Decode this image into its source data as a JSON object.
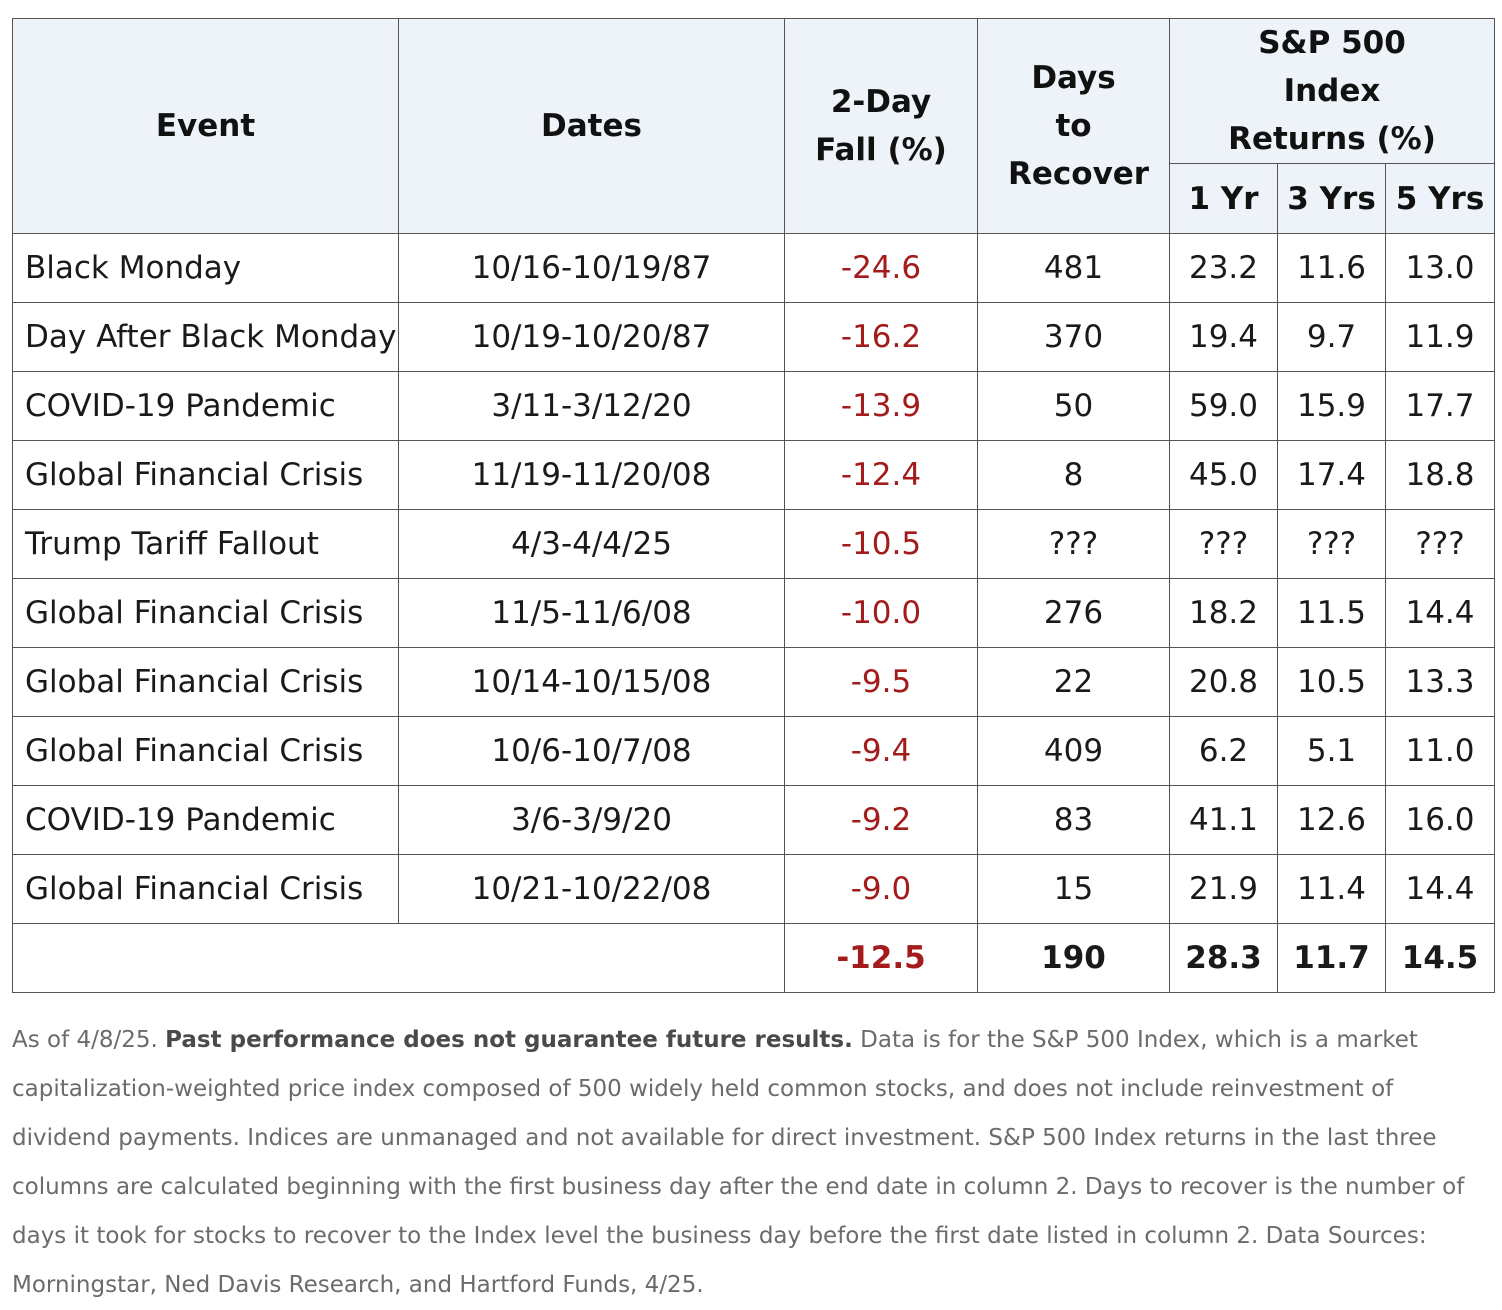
{
  "table": {
    "headers": {
      "event": "Event",
      "dates": "Dates",
      "fall": "2-Day Fall (%)",
      "days": "Days to Recover",
      "returns_group": "S&P 500 Index Returns (%)",
      "yr1": "1 Yr",
      "yr3": "3 Yrs",
      "yr5": "5 Yrs"
    },
    "rows": [
      {
        "event": "Black Monday",
        "dates": "10/16-10/19/87",
        "fall": "-24.6",
        "days": "481",
        "yr1": "23.2",
        "yr3": "11.6",
        "yr5": "13.0"
      },
      {
        "event": "Day After Black Monday",
        "dates": "10/19-10/20/87",
        "fall": "-16.2",
        "days": "370",
        "yr1": "19.4",
        "yr3": "9.7",
        "yr5": "11.9"
      },
      {
        "event": "COVID-19 Pandemic",
        "dates": "3/11-3/12/20",
        "fall": "-13.9",
        "days": "50",
        "yr1": "59.0",
        "yr3": "15.9",
        "yr5": "17.7"
      },
      {
        "event": "Global Financial Crisis",
        "dates": "11/19-11/20/08",
        "fall": "-12.4",
        "days": "8",
        "yr1": "45.0",
        "yr3": "17.4",
        "yr5": "18.8"
      },
      {
        "event": "Trump Tariff Fallout",
        "dates": "4/3-4/4/25",
        "fall": "-10.5",
        "days": "???",
        "yr1": "???",
        "yr3": "???",
        "yr5": "???"
      },
      {
        "event": "Global Financial Crisis",
        "dates": "11/5-11/6/08",
        "fall": "-10.0",
        "days": "276",
        "yr1": "18.2",
        "yr3": "11.5",
        "yr5": "14.4"
      },
      {
        "event": "Global Financial Crisis",
        "dates": "10/14-10/15/08",
        "fall": "-9.5",
        "days": "22",
        "yr1": "20.8",
        "yr3": "10.5",
        "yr5": "13.3"
      },
      {
        "event": "Global Financial Crisis",
        "dates": "10/6-10/7/08",
        "fall": "-9.4",
        "days": "409",
        "yr1": "6.2",
        "yr3": "5.1",
        "yr5": "11.0"
      },
      {
        "event": "COVID-19 Pandemic",
        "dates": "3/6-3/9/20",
        "fall": "-9.2",
        "days": "83",
        "yr1": "41.1",
        "yr3": "12.6",
        "yr5": "16.0"
      },
      {
        "event": "Global Financial Crisis",
        "dates": "10/21-10/22/08",
        "fall": "-9.0",
        "days": "15",
        "yr1": "21.9",
        "yr3": "11.4",
        "yr5": "14.4"
      }
    ],
    "summary": {
      "fall": "-12.5",
      "days": "190",
      "yr1": "28.3",
      "yr3": "11.7",
      "yr5": "14.5"
    }
  },
  "note": {
    "prefix": "As of 4/8/25.",
    "bold": "Past performance does not guarantee future results.",
    "body": "Data is for the S&P 500 Index, which is a market capitalization-weighted price index composed of 500 widely held common stocks, and does not include reinvestment of dividend payments. Indices are unmanaged and not available for direct investment. S&P 500 Index returns in the last three columns are calculated beginning with the first business day after the end date in column 2. Days to recover is the number of days it took for stocks to recover to the Index level the business day before the first date listed in column 2. Data Sources: Morningstar, Ned Davis Research, and Hartford Funds, 4/25."
  },
  "colors": {
    "header_bg": "#eef3fa",
    "negative": "#a31b1b",
    "border": "#555555",
    "note_text": "#6b6b6b"
  },
  "chart_data": {
    "type": "table",
    "columns": [
      "Event",
      "Dates",
      "2-Day Fall (%)",
      "Days to Recover",
      "1 Yr",
      "3 Yrs",
      "5 Yrs"
    ],
    "column_group": "S&P 500 Index Returns (%)"
  }
}
